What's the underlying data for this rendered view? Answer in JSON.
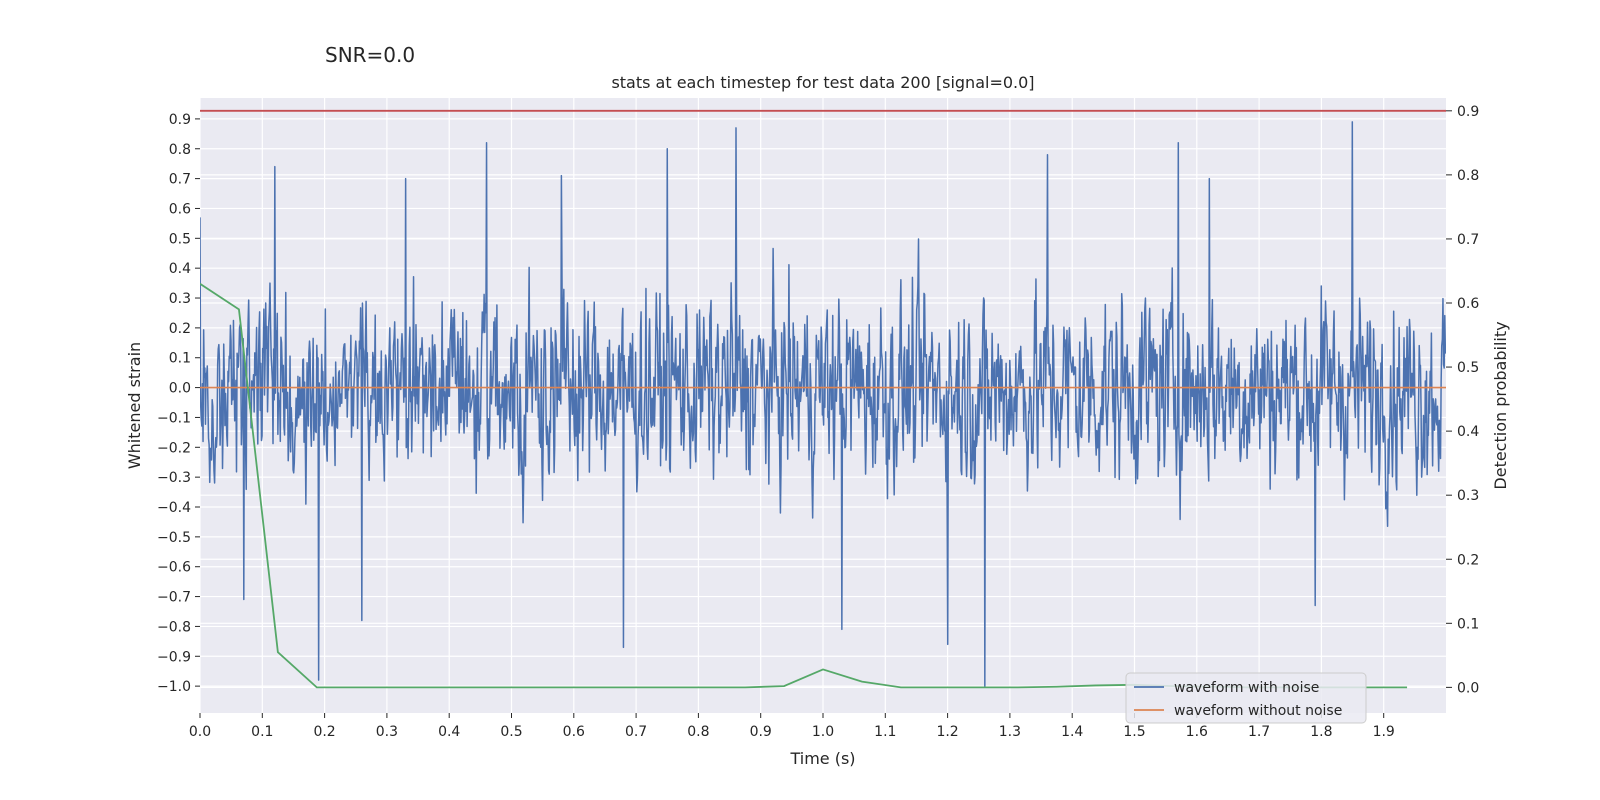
{
  "chart_data": {
    "type": "line",
    "suptitle": "SNR=0.0",
    "title": "stats at each timestep for test data 200 [signal=0.0]",
    "xlabel": "Time (s)",
    "ylabel": "Whitened strain",
    "y2label": "Detection probability",
    "xlim": [
      0.0,
      2.0
    ],
    "ylim": [
      -1.09,
      0.97
    ],
    "y2lim": [
      -0.04,
      0.92
    ],
    "xticks": [
      "0.0",
      "0.1",
      "0.2",
      "0.3",
      "0.4",
      "0.5",
      "0.6",
      "0.7",
      "0.8",
      "0.9",
      "1.0",
      "1.1",
      "1.2",
      "1.3",
      "1.4",
      "1.5",
      "1.6",
      "1.7",
      "1.8",
      "1.9"
    ],
    "yticks": [
      "0.9",
      "0.8",
      "0.7",
      "0.6",
      "0.5",
      "0.4",
      "0.3",
      "0.2",
      "0.1",
      "0.0",
      "−0.1",
      "−0.2",
      "−0.3",
      "−0.4",
      "−0.5",
      "−0.6",
      "−0.7",
      "−0.8",
      "−0.9",
      "−1.0"
    ],
    "y2ticks": [
      "0.9",
      "0.8",
      "0.7",
      "0.6",
      "0.5",
      "0.4",
      "0.3",
      "0.2",
      "0.1",
      "0.0"
    ],
    "threshold": 0.9,
    "colors": {
      "noise": "#4c72b0",
      "clean": "#dd8452",
      "prob": "#55a868",
      "threshold": "#c44e52",
      "background": "#eaeaf2",
      "grid": "#ffffff"
    },
    "noise_samples": 2048,
    "noise_peaks": [
      {
        "t": 0.0,
        "v": 0.57
      },
      {
        "t": 0.12,
        "v": 0.74
      },
      {
        "t": 0.07,
        "v": -0.71
      },
      {
        "t": 0.19,
        "v": -0.98
      },
      {
        "t": 0.26,
        "v": -0.78
      },
      {
        "t": 0.33,
        "v": 0.7
      },
      {
        "t": 0.46,
        "v": 0.82
      },
      {
        "t": 0.58,
        "v": 0.71
      },
      {
        "t": 0.68,
        "v": -0.87
      },
      {
        "t": 0.75,
        "v": 0.8
      },
      {
        "t": 0.86,
        "v": 0.87
      },
      {
        "t": 1.03,
        "v": -0.81
      },
      {
        "t": 1.2,
        "v": -0.86
      },
      {
        "t": 1.26,
        "v": -1.0
      },
      {
        "t": 1.36,
        "v": 0.78
      },
      {
        "t": 1.57,
        "v": 0.82
      },
      {
        "t": 1.62,
        "v": 0.7
      },
      {
        "t": 1.79,
        "v": -0.73
      },
      {
        "t": 1.85,
        "v": 0.89
      }
    ],
    "series": [
      {
        "name": "waveform with noise",
        "color": "#4c72b0",
        "legend": true
      },
      {
        "name": "waveform without noise",
        "color": "#dd8452",
        "legend": true,
        "x": [
          0.0,
          2.0
        ],
        "y": [
          0.0,
          0.0
        ]
      },
      {
        "name": "detection probability",
        "color": "#55a868",
        "legend": false,
        "axis": "right",
        "x": [
          0.0,
          0.0625,
          0.125,
          0.1875,
          0.25,
          0.3125,
          0.375,
          0.4375,
          0.5,
          0.5625,
          0.625,
          0.6875,
          0.75,
          0.8125,
          0.875,
          0.9375,
          1.0,
          1.0625,
          1.125,
          1.1875,
          1.25,
          1.3125,
          1.375,
          1.4375,
          1.5,
          1.5625,
          1.625,
          1.6875,
          1.75,
          1.8125,
          1.875,
          1.9375
        ],
        "y": [
          0.63,
          0.59,
          0.055,
          0.0,
          0.0,
          0.0,
          0.0,
          0.0,
          0.0,
          0.0,
          0.0,
          0.0,
          0.0,
          0.0,
          0.0,
          0.002,
          0.028,
          0.009,
          0.0,
          0.0,
          0.0,
          0.0,
          0.001,
          0.003,
          0.004,
          0.002,
          0.001,
          0.0,
          0.0,
          0.0,
          0.0,
          0.0
        ]
      }
    ],
    "legend_position": "lower-right"
  }
}
